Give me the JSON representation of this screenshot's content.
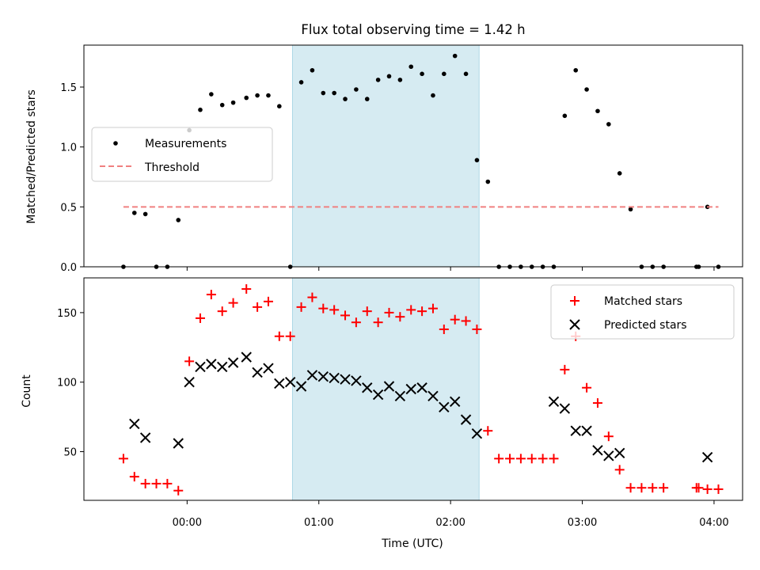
{
  "chart_data": [
    {
      "type": "scatter",
      "title": "Flux total observing time = 1.42 h",
      "xlabel": "",
      "ylabel": "Matched/Predicted stars",
      "ylim": [
        0,
        1.85
      ],
      "yticks": [
        0.0,
        0.5,
        1.0,
        1.5
      ],
      "ytick_labels": [
        "0.0",
        "0.5",
        "1.0",
        "1.5"
      ],
      "xlim": [
        "23:13",
        "04:13"
      ],
      "xticks": [
        "00:00",
        "01:00",
        "02:00",
        "03:00",
        "04:00"
      ],
      "shaded_interval": [
        "00:48",
        "02:13"
      ],
      "shaded_color": "#add8e6",
      "legend_position": "center-left",
      "series": [
        {
          "name": "Measurements",
          "marker": "dot",
          "color": "#000000",
          "x": [
            "23:31",
            "23:36",
            "23:41",
            "23:46",
            "23:51",
            "23:56",
            "00:01",
            "00:06",
            "00:11",
            "00:16",
            "00:21",
            "00:27",
            "00:32",
            "00:37",
            "00:42",
            "00:47",
            "00:52",
            "00:57",
            "01:02",
            "01:07",
            "01:12",
            "01:17",
            "01:22",
            "01:27",
            "01:32",
            "01:37",
            "01:42",
            "01:47",
            "01:52",
            "01:57",
            "02:02",
            "02:07",
            "02:12",
            "02:17",
            "02:22",
            "02:27",
            "02:32",
            "02:37",
            "02:42",
            "02:47",
            "02:52",
            "02:57",
            "03:02",
            "03:07",
            "03:12",
            "03:17",
            "03:22",
            "03:27",
            "03:32",
            "03:37",
            "03:52",
            "03:53",
            "03:57",
            "04:02"
          ],
          "y": [
            0.0,
            0.45,
            0.44,
            0.0,
            0.0,
            0.39,
            1.14,
            1.31,
            1.44,
            1.35,
            1.37,
            1.41,
            1.43,
            1.43,
            1.34,
            0.0,
            1.54,
            1.64,
            1.45,
            1.45,
            1.4,
            1.48,
            1.4,
            1.56,
            1.59,
            1.56,
            1.67,
            1.61,
            1.43,
            1.61,
            1.76,
            1.61,
            0.89,
            0.71,
            0.0,
            0.0,
            0.0,
            0.0,
            0.0,
            0.0,
            1.26,
            1.64,
            1.48,
            1.3,
            1.19,
            0.78,
            0.48,
            0.0,
            0.0,
            0.0,
            0.0,
            0.0,
            0.5,
            0.0
          ]
        },
        {
          "name": "Threshold",
          "marker": "dashed-line",
          "color": "#f08080",
          "x": [
            "23:31",
            "04:02"
          ],
          "y": [
            0.5,
            0.5
          ]
        }
      ]
    },
    {
      "type": "scatter",
      "title": "",
      "xlabel": "Time (UTC)",
      "ylabel": "Count",
      "ylim": [
        15,
        175
      ],
      "yticks": [
        50,
        100,
        150
      ],
      "ytick_labels": [
        "50",
        "100",
        "150"
      ],
      "xlim": [
        "23:13",
        "04:13"
      ],
      "xticks": [
        "00:00",
        "01:00",
        "02:00",
        "03:00",
        "04:00"
      ],
      "xtick_labels": [
        "00:00",
        "01:00",
        "02:00",
        "03:00",
        "04:00"
      ],
      "shaded_interval": [
        "00:48",
        "02:13"
      ],
      "shaded_color": "#add8e6",
      "legend_position": "top-right",
      "series": [
        {
          "name": "Matched stars",
          "marker": "plus",
          "color": "#ff0000",
          "x": [
            "23:31",
            "23:36",
            "23:41",
            "23:46",
            "23:51",
            "23:56",
            "00:01",
            "00:06",
            "00:11",
            "00:16",
            "00:21",
            "00:27",
            "00:32",
            "00:37",
            "00:42",
            "00:47",
            "00:52",
            "00:57",
            "01:02",
            "01:07",
            "01:12",
            "01:17",
            "01:22",
            "01:27",
            "01:32",
            "01:37",
            "01:42",
            "01:47",
            "01:52",
            "01:57",
            "02:02",
            "02:07",
            "02:12",
            "02:17",
            "02:22",
            "02:27",
            "02:32",
            "02:37",
            "02:42",
            "02:47",
            "02:52",
            "02:57",
            "03:02",
            "03:07",
            "03:12",
            "03:17",
            "03:22",
            "03:27",
            "03:32",
            "03:37",
            "03:52",
            "03:53",
            "03:57",
            "04:02"
          ],
          "y": [
            45,
            32,
            27,
            27,
            27,
            22,
            115,
            146,
            163,
            151,
            157,
            167,
            154,
            158,
            133,
            133,
            154,
            161,
            153,
            152,
            148,
            143,
            151,
            143,
            150,
            147,
            152,
            151,
            153,
            138,
            145,
            144,
            138,
            65,
            45,
            45,
            45,
            45,
            45,
            45,
            109,
            133,
            96,
            85,
            61,
            37,
            24,
            24,
            24,
            24,
            24,
            24,
            23,
            23
          ]
        },
        {
          "name": "Predicted stars",
          "marker": "x",
          "color": "#000000",
          "x": [
            "23:36",
            "23:41",
            "23:56",
            "00:01",
            "00:06",
            "00:11",
            "00:16",
            "00:21",
            "00:27",
            "00:32",
            "00:37",
            "00:42",
            "00:47",
            "00:52",
            "00:57",
            "01:02",
            "01:07",
            "01:12",
            "01:17",
            "01:22",
            "01:27",
            "01:32",
            "01:37",
            "01:42",
            "01:47",
            "01:52",
            "01:57",
            "02:02",
            "02:07",
            "02:12",
            "02:47",
            "02:52",
            "02:57",
            "03:02",
            "03:07",
            "03:12",
            "03:17",
            "03:57"
          ],
          "y": [
            70,
            60,
            56,
            100,
            111,
            113,
            111,
            114,
            118,
            107,
            110,
            99,
            100,
            97,
            105,
            104,
            103,
            102,
            101,
            96,
            91,
            97,
            90,
            95,
            96,
            90,
            82,
            86,
            73,
            63,
            86,
            81,
            65,
            65,
            51,
            47,
            49,
            46
          ]
        }
      ]
    }
  ]
}
